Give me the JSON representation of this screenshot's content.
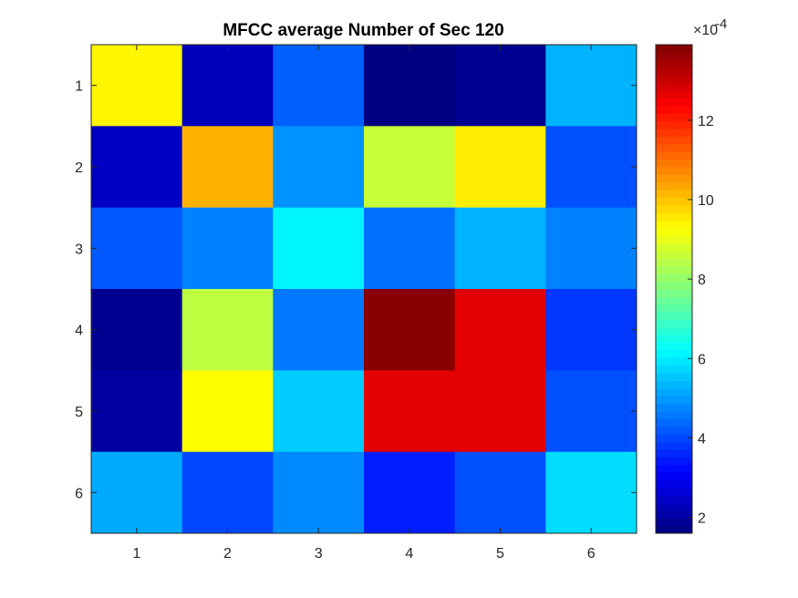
{
  "chart_data": {
    "type": "heatmap",
    "title": "MFCC average Number of Sec 120",
    "x_ticks": [
      "1",
      "2",
      "3",
      "4",
      "5",
      "6"
    ],
    "y_ticks": [
      "1",
      "2",
      "3",
      "4",
      "5",
      "6"
    ],
    "xlabel": "",
    "ylabel": "",
    "values": [
      [
        9.4,
        2.3,
        4.3,
        1.6,
        1.8,
        5.3
      ],
      [
        2.4,
        10.2,
        4.9,
        8.6,
        9.5,
        4.1
      ],
      [
        4.2,
        4.7,
        6.1,
        4.5,
        5.3,
        4.7
      ],
      [
        1.8,
        8.5,
        4.6,
        13.8,
        12.7,
        3.8
      ],
      [
        2.0,
        9.3,
        5.6,
        12.7,
        12.7,
        4.1
      ],
      [
        5.2,
        4.0,
        4.8,
        3.5,
        4.1,
        5.8
      ]
    ],
    "value_multiplier_label": "×10",
    "value_multiplier_exponent": "-4",
    "colorbar": {
      "colormap": "jet",
      "range": [
        1.6,
        13.9
      ],
      "ticks": [
        "2",
        "4",
        "6",
        "8",
        "10",
        "12"
      ],
      "tick_values": [
        2,
        4,
        6,
        8,
        10,
        12
      ]
    },
    "grid": false
  }
}
